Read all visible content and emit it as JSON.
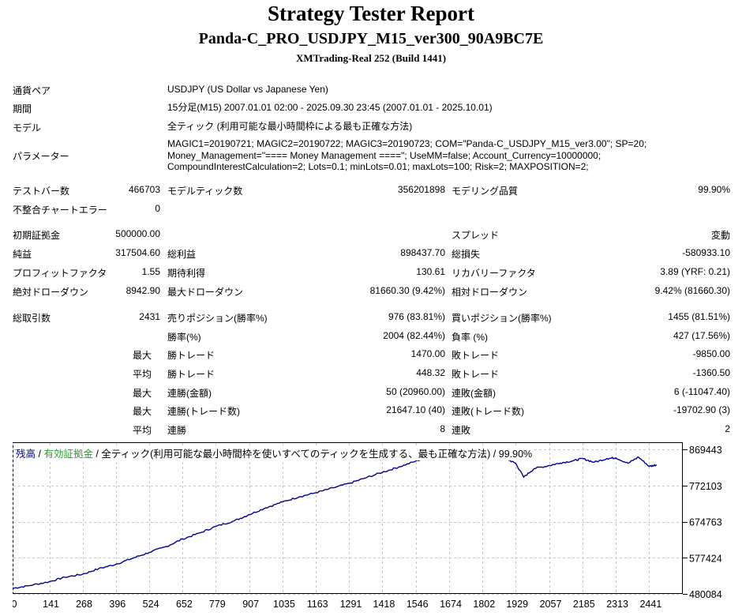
{
  "header": {
    "title": "Strategy Tester Report",
    "ea_name": "Panda-C_PRO_USDJPY_M15_ver300_90A9BC7E",
    "server": "XMTrading-Real 252 (Build 1441)"
  },
  "info": {
    "symbol_label": "通貨ペア",
    "symbol_value": "USDJPY (US Dollar vs Japanese Yen)",
    "period_label": "期間",
    "period_value": "15分足(M15) 2007.01.01 02:00 - 2025.09.30 23:45 (2007.01.01 - 2025.10.01)",
    "model_label": "モデル",
    "model_value": "全ティック (利用可能な最小時間枠による最も正確な方法)",
    "params_label": "パラメーター",
    "params_line1": "MAGIC1=20190721; MAGIC2=20190722; MAGIC3=20190723; COM=\"Panda-C_USDJPY_M15_ver3.00\"; SP=20;",
    "params_line2": "Money_Management=\"==== Money Management ====\"; UseMM=false; Account_Currency=10000000;",
    "params_line3": "CompoundInterestCalculation=2; Lots=0.1; minLots=0.01; maxLots=100; Risk=2; MAXPOSITION=2;"
  },
  "stats": {
    "bars_label": "テストバー数",
    "bars_value": "466703",
    "ticks_label": "モデルティック数",
    "ticks_value": "356201898",
    "quality_label": "モデリング品質",
    "quality_value": "99.90%",
    "mismatch_label": "不整合チャートエラー",
    "mismatch_value": "0",
    "deposit_label": "初期証拠金",
    "deposit_value": "500000.00",
    "spread_label": "スプレッド",
    "spread_value": "変動",
    "net_label": "純益",
    "net_value": "317504.60",
    "gross_profit_label": "総利益",
    "gross_profit_value": "898437.70",
    "gross_loss_label": "総損失",
    "gross_loss_value": "-580933.10",
    "pf_label": "プロフィットファクタ",
    "pf_value": "1.55",
    "expected_label": "期待利得",
    "expected_value": "130.61",
    "recovery_label": "リカバリーファクタ",
    "recovery_value": "3.89 (YRF: 0.21)",
    "abs_dd_label": "絶対ドローダウン",
    "abs_dd_value": "8942.90",
    "max_dd_label": "最大ドローダウン",
    "max_dd_value": "81660.30 (9.42%)",
    "rel_dd_label": "相対ドローダウン",
    "rel_dd_value": "9.42% (81660.30)",
    "total_trades_label": "総取引数",
    "total_trades_value": "2431",
    "short_label": "売りポジション(勝率%)",
    "short_value": "976 (83.81%)",
    "long_label": "買いポジション(勝率%)",
    "long_value": "1455 (81.51%)",
    "win_rate_label": "勝率(%)",
    "win_rate_value": "2004 (82.44%)",
    "loss_rate_label": "負率 (%)",
    "loss_rate_value": "427 (17.56%)",
    "pre_max": "最大",
    "pre_avg": "平均",
    "largest_win_label": "勝トレード",
    "largest_win_value": "1470.00",
    "largest_loss_label": "敗トレード",
    "largest_loss_value": "-9850.00",
    "avg_win_label": "勝トレード",
    "avg_win_value": "448.32",
    "avg_loss_label": "敗トレード",
    "avg_loss_value": "-1360.50",
    "max_consec_win_money_label": "連勝(金額)",
    "max_consec_win_money_value": "50 (20960.00)",
    "max_consec_loss_money_label": "連敗(金額)",
    "max_consec_loss_money_value": "6 (-11047.40)",
    "max_consec_win_count_label": "連勝(トレード数)",
    "max_consec_win_count_value": "21647.10 (40)",
    "max_consec_loss_count_label": "連敗(トレード数)",
    "max_consec_loss_count_value": "-19702.90 (3)",
    "avg_consec_win_label": "連勝",
    "avg_consec_win_value": "8",
    "avg_consec_loss_label": "連敗",
    "avg_consec_loss_value": "2"
  },
  "chart_legend": {
    "balance": "残高",
    "sep1": " / ",
    "equity": "有効証拠金",
    "rest": " / 全ティック(利用可能な最小時間枠を使いすべてのティックを生成する、最も正確な方法) / 99.90%"
  },
  "chart_data": {
    "type": "line",
    "x_ticks": [
      0,
      141,
      268,
      396,
      524,
      652,
      779,
      907,
      1035,
      1163,
      1291,
      1418,
      1546,
      1674,
      1802,
      1929,
      2057,
      2185,
      2313,
      2441
    ],
    "y_ticks": [
      480084,
      577424,
      674763,
      772103,
      869443
    ],
    "xlim": [
      0,
      2570
    ],
    "ylim": [
      480084,
      888911
    ],
    "grid": true,
    "series": [
      {
        "color": "#00008b",
        "x": [
          0,
          60,
          141,
          200,
          268,
          330,
          396,
          460,
          524,
          590,
          652,
          720,
          779,
          850,
          907,
          970,
          1035,
          1100,
          1163,
          1230,
          1291,
          1350,
          1418,
          1480,
          1546,
          1600,
          1674,
          1740,
          1802,
          1830,
          1860,
          1900,
          1929,
          1960,
          2000,
          2057,
          2100,
          2150,
          2185,
          2230,
          2280,
          2313,
          2360,
          2400,
          2441,
          2470
        ],
        "y": [
          495000,
          502000,
          513000,
          525000,
          533000,
          548000,
          560000,
          576000,
          592000,
          608000,
          628000,
          645000,
          662000,
          677000,
          694000,
          712000,
          728000,
          742000,
          753000,
          766000,
          778000,
          792000,
          808000,
          822000,
          838000,
          850000,
          842000,
          856000,
          864000,
          878000,
          862000,
          842000,
          832000,
          795000,
          818000,
          826000,
          833000,
          839000,
          845000,
          835000,
          845000,
          847000,
          832000,
          849000,
          824000,
          828000
        ]
      }
    ]
  }
}
